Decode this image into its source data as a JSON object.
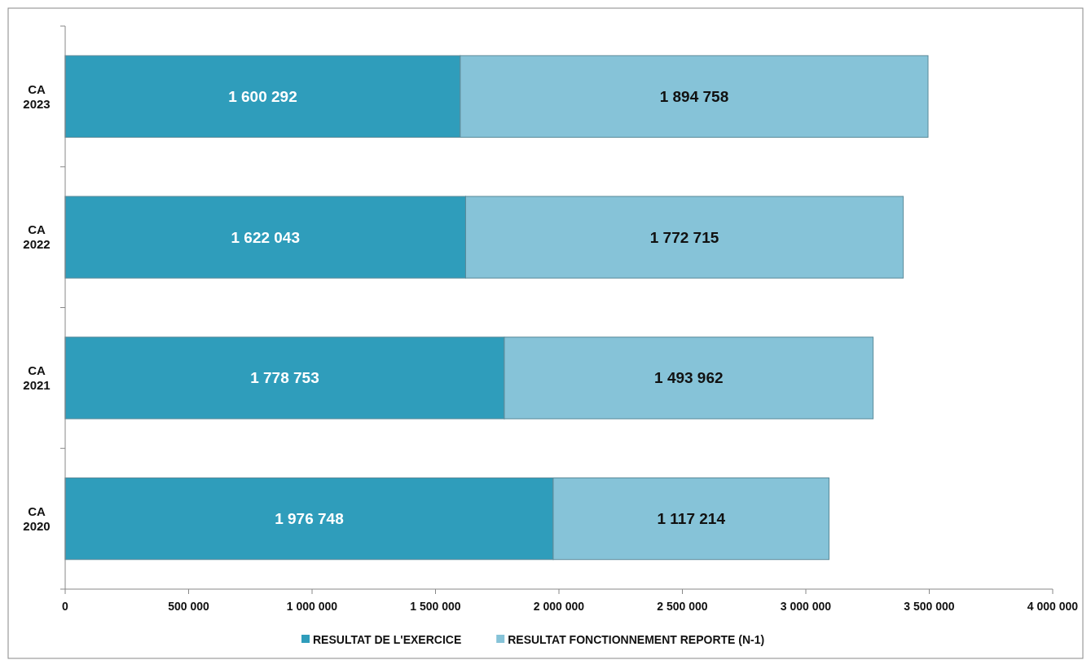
{
  "chart_data": {
    "type": "bar",
    "orientation": "horizontal",
    "stacked": true,
    "categories": [
      "CA 2023",
      "CA 2022",
      "CA 2021",
      "CA 2020"
    ],
    "series": [
      {
        "name": "RESULTAT DE L'EXERCICE",
        "color": "#2f9dbb",
        "values": [
          1600292,
          1622043,
          1778753,
          1976748
        ],
        "value_labels": [
          "1 600 292",
          "1 622 043",
          "1 778 753",
          "1 976 748"
        ]
      },
      {
        "name": "RESULTAT FONCTIONNEMENT REPORTE (N-1)",
        "color": "#86c3d8",
        "values": [
          1894758,
          1772715,
          1493962,
          1117214
        ],
        "value_labels": [
          "1 894 758",
          "1 772 715",
          "1 493 962",
          "1 117 214"
        ]
      }
    ],
    "xlim": [
      0,
      4000000
    ],
    "xticks": [
      0,
      {
        "value": 500000,
        "label": "500 000"
      },
      {
        "value": 1000000,
        "label": "1 000 000"
      },
      {
        "value": 1500000,
        "label": "1 500 000"
      },
      {
        "value": 2000000,
        "label": "2 000 000"
      },
      {
        "value": 2500000,
        "label": "2 500 000"
      },
      {
        "value": 3000000,
        "label": "3 000 000"
      },
      {
        "value": 3500000,
        "label": "3 500 000"
      },
      {
        "value": 4000000,
        "label": "4 000 000"
      }
    ],
    "grid": false,
    "legend": "bottom"
  }
}
